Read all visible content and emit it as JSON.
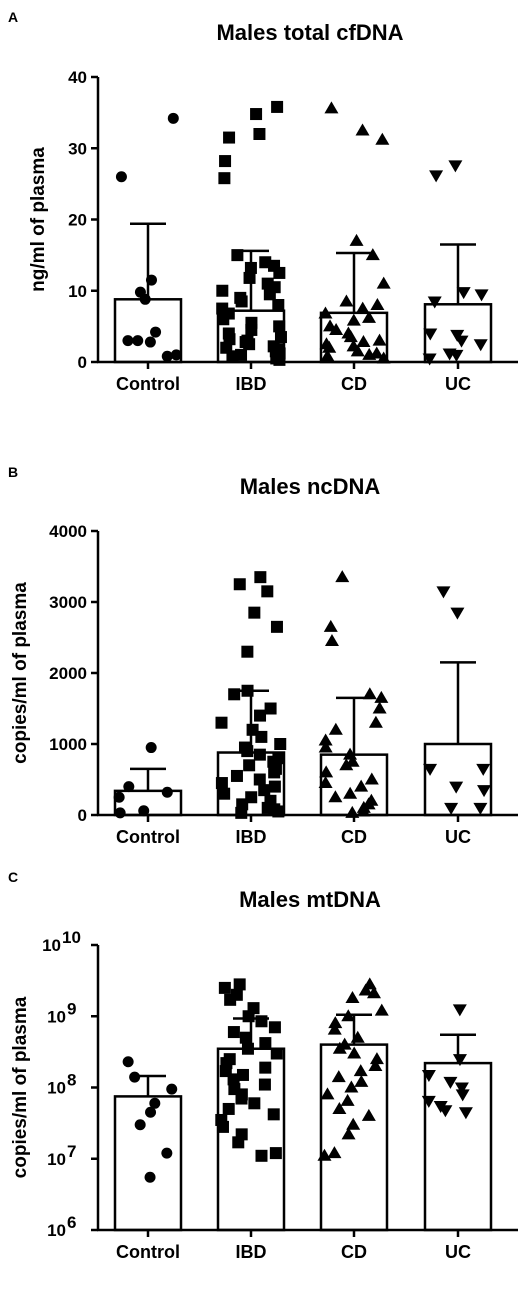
{
  "chart_data": [
    {
      "type": "bar",
      "panel": "A",
      "title": "Males total cfDNA",
      "ylabel": "ng/ml of plasma",
      "yscale": "linear",
      "ylim": [
        0,
        40
      ],
      "yticks": [
        "0",
        "10",
        "20",
        "30",
        "40"
      ],
      "categories": [
        "Control",
        "IBD",
        "CD",
        "UC"
      ],
      "markers": [
        "circle",
        "square",
        "triangle-up",
        "triangle-down"
      ],
      "series": [
        {
          "category": "Control",
          "mean": 8.8,
          "error": 19.4,
          "points": [
            34.2,
            26.0,
            11.5,
            9.8,
            8.8,
            4.2,
            3.0,
            3.0,
            2.8,
            1.0,
            0.8
          ]
        },
        {
          "category": "IBD",
          "mean": 7.2,
          "error": 15.6,
          "points": [
            35.8,
            34.8,
            32.0,
            31.5,
            28.2,
            25.8,
            15.0,
            14.0,
            13.5,
            13.2,
            12.5,
            11.8,
            11.0,
            10.5,
            10.0,
            9.5,
            9.0,
            8.5,
            8.0,
            7.5,
            6.8,
            6.0,
            5.5,
            5.0,
            4.5,
            4.0,
            3.5,
            3.2,
            3.0,
            2.8,
            2.5,
            2.2,
            2.0,
            1.8,
            1.5,
            1.2,
            1.0,
            0.8,
            0.5,
            0.3
          ]
        },
        {
          "category": "CD",
          "mean": 6.9,
          "error": 15.3,
          "points": [
            35.6,
            32.5,
            31.2,
            17.0,
            15.0,
            11.0,
            8.5,
            8.0,
            7.5,
            6.8,
            6.2,
            5.8,
            5.0,
            4.5,
            4.0,
            3.5,
            3.0,
            2.8,
            2.5,
            2.2,
            2.0,
            1.5,
            1.2,
            1.0,
            0.8,
            0.5
          ]
        },
        {
          "category": "UC",
          "mean": 8.1,
          "error": 16.5,
          "points": [
            27.6,
            26.2,
            9.8,
            9.5,
            8.5,
            4.0,
            3.8,
            3.0,
            2.5,
            1.2,
            1.0,
            0.5
          ]
        }
      ]
    },
    {
      "type": "bar",
      "panel": "B",
      "title": "Males ncDNA",
      "ylabel": "copies/ml of plasma",
      "yscale": "linear",
      "ylim": [
        0,
        4000
      ],
      "yticks": [
        "0",
        "1000",
        "2000",
        "3000",
        "4000"
      ],
      "categories": [
        "Control",
        "IBD",
        "CD",
        "UC"
      ],
      "markers": [
        "circle",
        "square",
        "triangle-up",
        "triangle-down"
      ],
      "series": [
        {
          "category": "Control",
          "mean": 340,
          "error": 650,
          "points": [
            950,
            400,
            320,
            250,
            60,
            30
          ]
        },
        {
          "category": "IBD",
          "mean": 880,
          "error": 1750,
          "points": [
            3350,
            3250,
            3150,
            2850,
            2650,
            2300,
            1750,
            1700,
            1500,
            1400,
            1300,
            1200,
            1100,
            1000,
            950,
            900,
            850,
            800,
            750,
            700,
            650,
            600,
            550,
            500,
            450,
            400,
            350,
            300,
            250,
            200,
            150,
            100,
            80,
            50,
            30
          ]
        },
        {
          "category": "CD",
          "mean": 850,
          "error": 1650,
          "points": [
            3350,
            2650,
            2450,
            1700,
            1650,
            1500,
            1300,
            1200,
            1050,
            950,
            850,
            750,
            700,
            600,
            500,
            450,
            400,
            300,
            250,
            200,
            150,
            100,
            50,
            30
          ]
        },
        {
          "category": "UC",
          "mean": 1000,
          "error": 2150,
          "points": [
            3150,
            2850,
            650,
            650,
            400,
            350,
            100,
            100
          ]
        }
      ]
    },
    {
      "type": "bar",
      "panel": "C",
      "title": "Males mtDNA",
      "ylabel": "copies/ml of plasma",
      "yscale": "log",
      "ylim": [
        1000000,
        10000000000
      ],
      "yticks": [
        "10^6",
        "10^7",
        "10^8",
        "10^9",
        "10^10"
      ],
      "categories": [
        "Control",
        "IBD",
        "CD",
        "UC"
      ],
      "markers": [
        "circle",
        "square",
        "triangle-up",
        "triangle-down"
      ],
      "series": [
        {
          "category": "Control",
          "mean": 75000000,
          "error": 145000000,
          "points": [
            230000000,
            140000000,
            95000000,
            60000000,
            45000000,
            30000000,
            12000000,
            5500000
          ]
        },
        {
          "category": "IBD",
          "mean": 350000000,
          "error": 930000000,
          "points": [
            2800000000,
            2500000000,
            2000000000,
            1700000000,
            1300000000,
            1000000000,
            850000000,
            700000000,
            600000000,
            500000000,
            420000000,
            350000000,
            300000000,
            250000000,
            220000000,
            190000000,
            170000000,
            150000000,
            130000000,
            110000000,
            95000000,
            80000000,
            70000000,
            60000000,
            50000000,
            42000000,
            35000000,
            28000000,
            22000000,
            17000000,
            12000000,
            11000000
          ]
        },
        {
          "category": "CD",
          "mean": 400000000,
          "error": 1050000000,
          "points": [
            2800000000,
            2300000000,
            2100000000,
            1800000000,
            1200000000,
            1000000000,
            800000000,
            650000000,
            500000000,
            400000000,
            350000000,
            300000000,
            250000000,
            200000000,
            170000000,
            140000000,
            120000000,
            100000000,
            80000000,
            65000000,
            50000000,
            40000000,
            30000000,
            22000000,
            12000000,
            11000000
          ]
        },
        {
          "category": "UC",
          "mean": 220000000,
          "error": 550000000,
          "points": [
            1250000000,
            250000000,
            150000000,
            120000000,
            100000000,
            80000000,
            65000000,
            55000000,
            48000000,
            45000000
          ]
        }
      ]
    }
  ]
}
